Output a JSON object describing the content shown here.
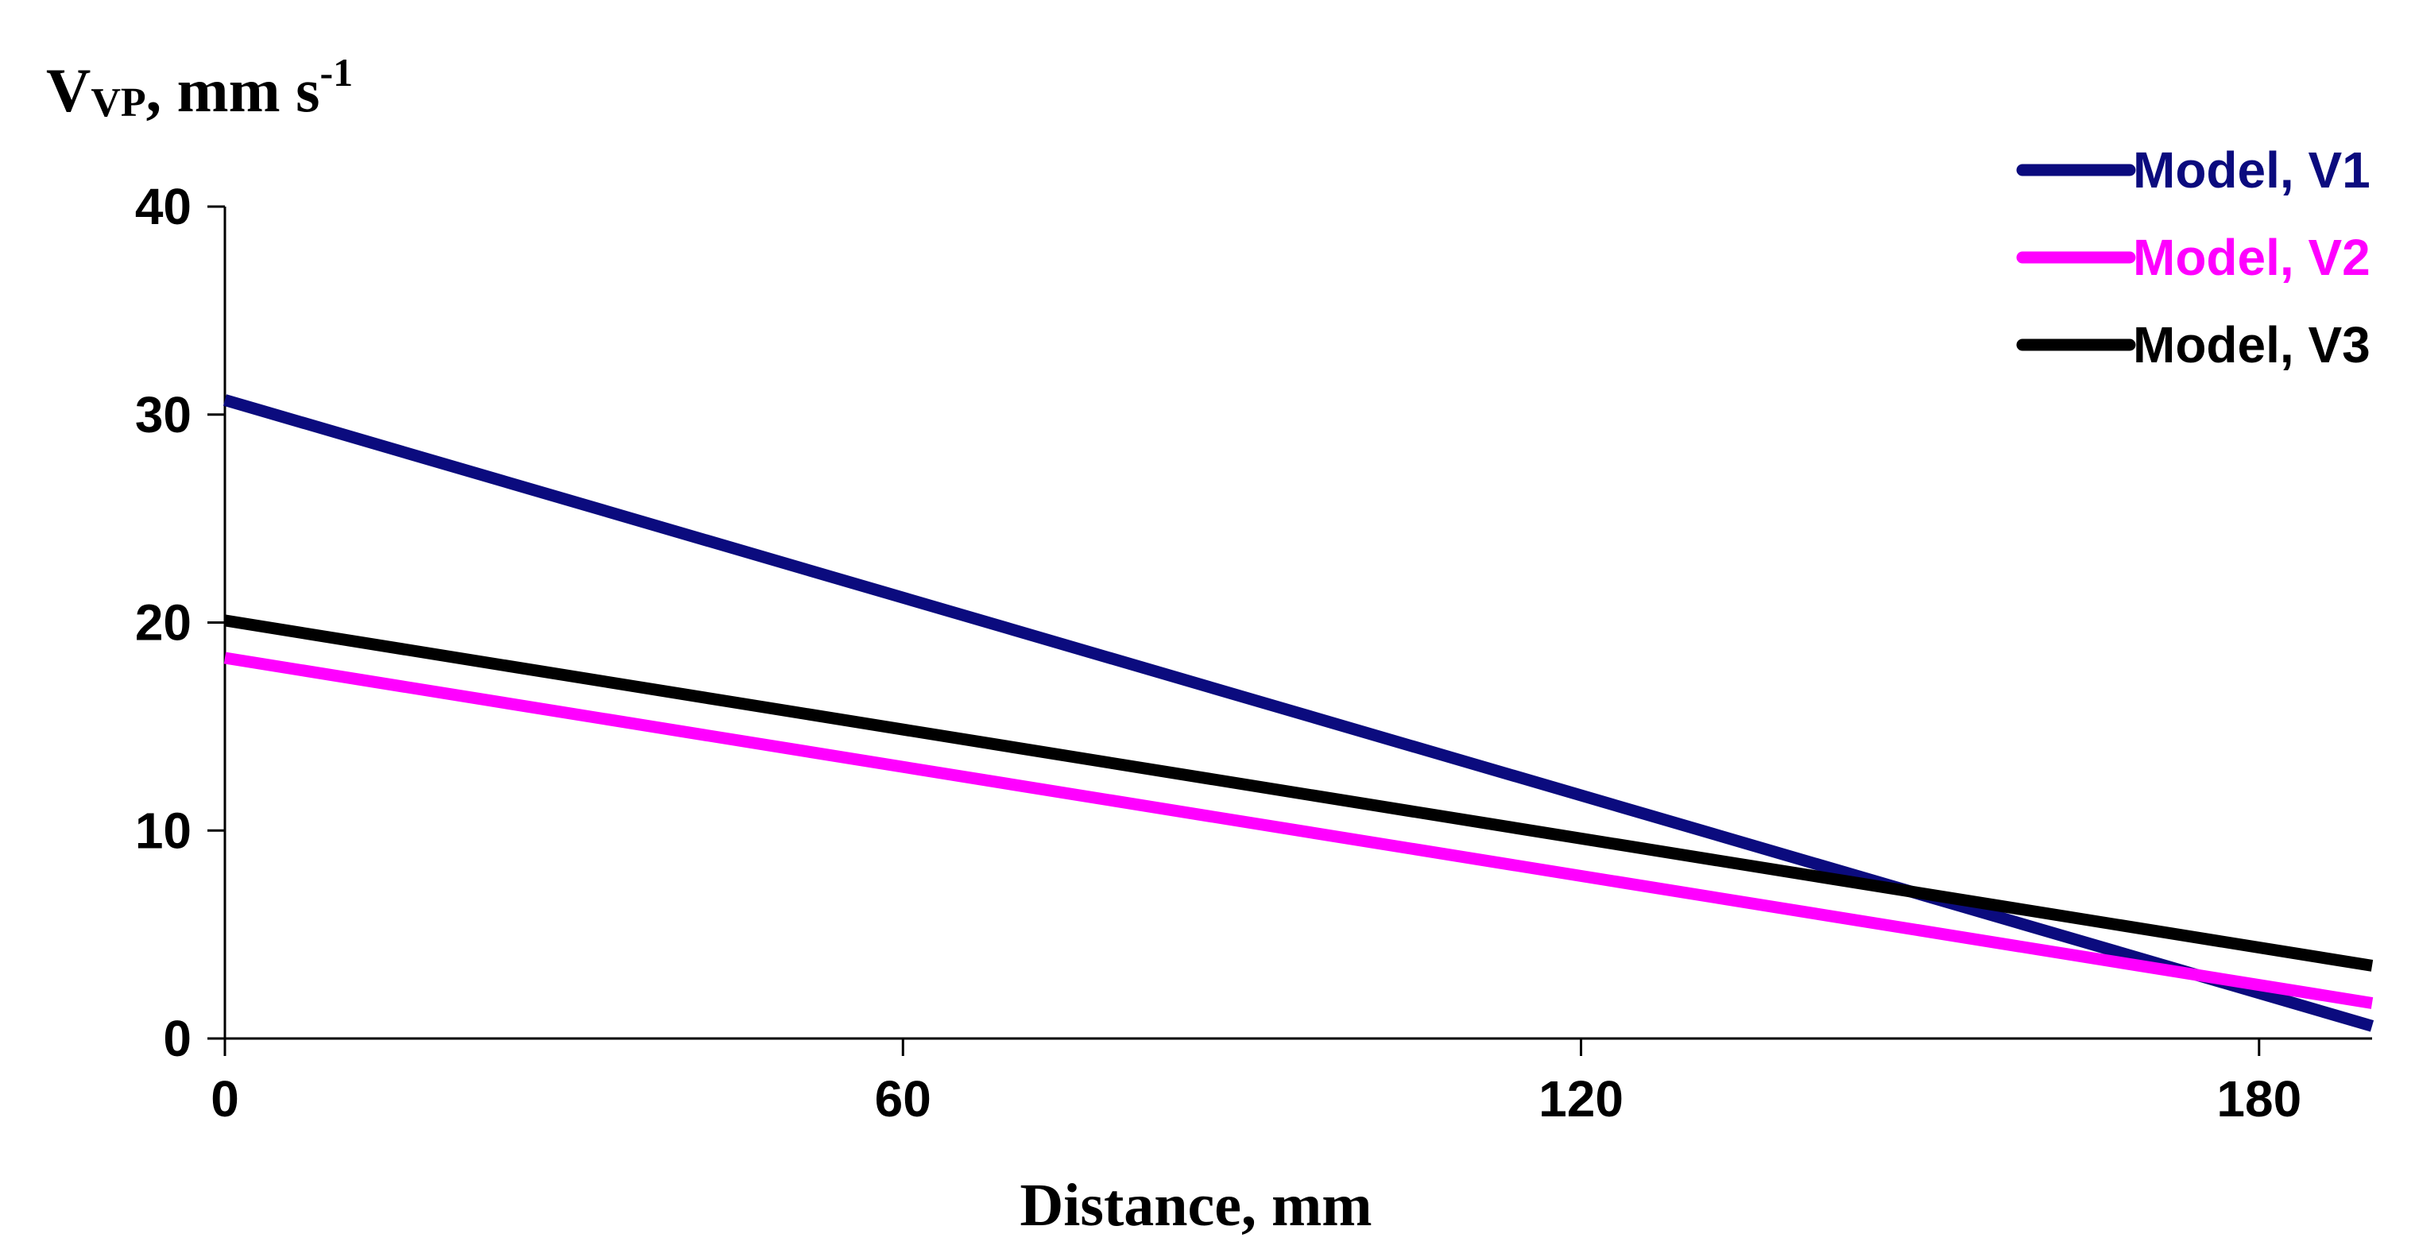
{
  "chart_data": {
    "type": "line",
    "title": "",
    "ylabel": {
      "main": "V",
      "subscript": "VP",
      "unit": ", mm s",
      "exponent": "-1"
    },
    "xlabel": "Distance, mm",
    "xlim": [
      0,
      190
    ],
    "ylim": [
      0,
      40
    ],
    "xticks": [
      0,
      60,
      120,
      180
    ],
    "yticks": [
      0,
      10,
      20,
      30,
      40
    ],
    "grid": false,
    "legend_position": "top-right",
    "series": [
      {
        "name": "Model, V1",
        "color": "#0b0b7e",
        "x": [
          0,
          190
        ],
        "y": [
          30.7,
          0.6
        ]
      },
      {
        "name": "Model, V2",
        "color": "#ff00ff",
        "x": [
          0,
          190
        ],
        "y": [
          18.3,
          1.7
        ]
      },
      {
        "name": "Model, V3",
        "color": "#000000",
        "x": [
          0,
          190
        ],
        "y": [
          20.1,
          3.5
        ]
      }
    ]
  }
}
